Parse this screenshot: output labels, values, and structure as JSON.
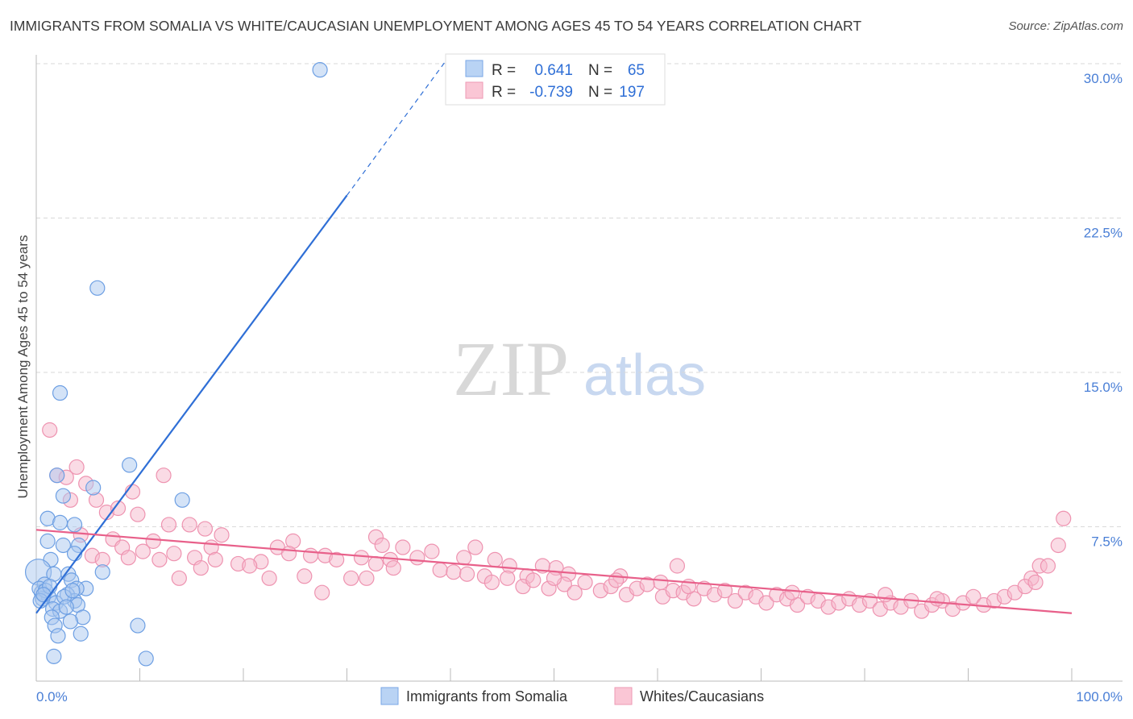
{
  "title": "IMMIGRANTS FROM SOMALIA VS WHITE/CAUCASIAN UNEMPLOYMENT AMONG AGES 45 TO 54 YEARS CORRELATION CHART",
  "source": "Source: ZipAtlas.com",
  "watermark": "ZIPatlas",
  "colors": {
    "blue": "#2f6fd6",
    "blue_fill": "#a9c8f0",
    "pink": "#e8608a",
    "pink_fill": "#f6b8cb"
  },
  "chart_data": {
    "type": "scatter",
    "title": "IMMIGRANTS FROM SOMALIA VS WHITE/CAUCASIAN UNEMPLOYMENT AMONG AGES 45 TO 54 YEARS CORRELATION CHART",
    "xlabel": "",
    "ylabel": "Unemployment Among Ages 45 to 54 years",
    "xlim": [
      0,
      100
    ],
    "ylim": [
      0,
      30
    ],
    "x_tick_labels": [
      "0.0%",
      "100.0%"
    ],
    "y_ticks": [
      7.5,
      15.0,
      22.5,
      30.0
    ],
    "y_tick_labels": [
      "7.5%",
      "15.0%",
      "22.5%",
      "30.0%"
    ],
    "grid": true,
    "legend_placement": "top-center",
    "legend": [
      {
        "name": "Immigrants from Somalia",
        "r_label": "R =",
        "r": "0.641",
        "n_label": "N =",
        "n": "65"
      },
      {
        "name": "Whites/Caucasians",
        "r_label": "R =",
        "r": "-0.739",
        "n_label": "N =",
        "n": "197"
      }
    ],
    "series": [
      {
        "name": "Immigrants from Somalia",
        "trend": {
          "x": [
            0,
            30
          ],
          "y": [
            3.3,
            23.6
          ],
          "dashed_to": [
            39.5,
            30.1
          ]
        },
        "points": [
          [
            27.4,
            29.7
          ],
          [
            5.9,
            19.1
          ],
          [
            2.3,
            14.0
          ],
          [
            2.0,
            10.0
          ],
          [
            9.0,
            10.5
          ],
          [
            5.5,
            9.4
          ],
          [
            14.1,
            8.8
          ],
          [
            2.6,
            9.0
          ],
          [
            1.1,
            7.9
          ],
          [
            2.3,
            7.7
          ],
          [
            3.7,
            7.6
          ],
          [
            1.1,
            6.8
          ],
          [
            2.6,
            6.6
          ],
          [
            4.1,
            6.6
          ],
          [
            3.7,
            6.2
          ],
          [
            1.4,
            5.9
          ],
          [
            6.4,
            5.3
          ],
          [
            0.2,
            5.3
          ],
          [
            3.1,
            5.2
          ],
          [
            1.7,
            5.2
          ],
          [
            3.4,
            4.9
          ],
          [
            4.8,
            4.5
          ],
          [
            0.8,
            4.7
          ],
          [
            3.9,
            4.5
          ],
          [
            0.5,
            4.3
          ],
          [
            1.2,
            4.1
          ],
          [
            3.0,
            4.2
          ],
          [
            3.7,
            3.9
          ],
          [
            1.9,
            3.8
          ],
          [
            4.0,
            3.7
          ],
          [
            1.6,
            3.5
          ],
          [
            2.3,
            3.4
          ],
          [
            1.5,
            3.1
          ],
          [
            4.5,
            3.1
          ],
          [
            3.3,
            2.9
          ],
          [
            1.8,
            2.7
          ],
          [
            9.8,
            2.7
          ],
          [
            4.3,
            2.3
          ],
          [
            2.1,
            2.2
          ],
          [
            1.7,
            1.2
          ],
          [
            10.6,
            1.1
          ],
          [
            0.3,
            4.5
          ],
          [
            0.6,
            4.0
          ],
          [
            0.9,
            4.4
          ],
          [
            1.3,
            4.6
          ],
          [
            0.4,
            3.9
          ],
          [
            2.7,
            4.1
          ],
          [
            3.5,
            4.4
          ],
          [
            2.9,
            3.6
          ],
          [
            0.7,
            4.2
          ]
        ]
      },
      {
        "name": "Whites/Caucasians",
        "trend": {
          "x": [
            0,
            100
          ],
          "y": [
            7.35,
            3.3
          ]
        },
        "points": [
          [
            1.3,
            12.2
          ],
          [
            3.9,
            10.4
          ],
          [
            2.0,
            10.0
          ],
          [
            2.9,
            9.9
          ],
          [
            12.3,
            10.0
          ],
          [
            4.8,
            9.6
          ],
          [
            9.3,
            9.2
          ],
          [
            3.3,
            8.8
          ],
          [
            5.8,
            8.8
          ],
          [
            6.8,
            8.2
          ],
          [
            9.8,
            8.1
          ],
          [
            7.9,
            8.4
          ],
          [
            99.2,
            7.9
          ],
          [
            12.8,
            7.6
          ],
          [
            14.8,
            7.6
          ],
          [
            16.3,
            7.4
          ],
          [
            17.9,
            7.1
          ],
          [
            32.8,
            7.0
          ],
          [
            4.3,
            7.1
          ],
          [
            7.4,
            6.9
          ],
          [
            11.3,
            6.8
          ],
          [
            24.8,
            6.8
          ],
          [
            33.4,
            6.6
          ],
          [
            98.7,
            6.6
          ],
          [
            8.3,
            6.5
          ],
          [
            16.9,
            6.5
          ],
          [
            23.3,
            6.5
          ],
          [
            35.4,
            6.5
          ],
          [
            42.4,
            6.5
          ],
          [
            38.2,
            6.3
          ],
          [
            10.3,
            6.3
          ],
          [
            13.3,
            6.2
          ],
          [
            24.4,
            6.2
          ],
          [
            26.5,
            6.1
          ],
          [
            27.9,
            6.1
          ],
          [
            5.4,
            6.1
          ],
          [
            8.9,
            6.0
          ],
          [
            15.3,
            6.0
          ],
          [
            31.4,
            6.0
          ],
          [
            36.8,
            6.0
          ],
          [
            41.3,
            6.0
          ],
          [
            29.0,
            5.9
          ],
          [
            34.2,
            5.9
          ],
          [
            6.4,
            5.9
          ],
          [
            11.9,
            5.9
          ],
          [
            17.3,
            5.9
          ],
          [
            44.3,
            5.9
          ],
          [
            21.7,
            5.8
          ],
          [
            19.5,
            5.7
          ],
          [
            61.9,
            5.6
          ],
          [
            20.6,
            5.6
          ],
          [
            32.8,
            5.7
          ],
          [
            34.5,
            5.5
          ],
          [
            45.7,
            5.6
          ],
          [
            50.2,
            5.5
          ],
          [
            48.9,
            5.6
          ],
          [
            96.9,
            5.6
          ],
          [
            97.7,
            5.6
          ],
          [
            15.9,
            5.5
          ],
          [
            39.0,
            5.4
          ],
          [
            40.3,
            5.3
          ],
          [
            43.3,
            5.1
          ],
          [
            47.4,
            5.1
          ],
          [
            13.8,
            5.0
          ],
          [
            22.5,
            5.0
          ],
          [
            25.9,
            5.1
          ],
          [
            30.4,
            5.0
          ],
          [
            31.9,
            5.0
          ],
          [
            96.1,
            5.0
          ],
          [
            51.4,
            5.2
          ],
          [
            56.4,
            5.1
          ],
          [
            60.3,
            4.8
          ],
          [
            27.6,
            4.3
          ],
          [
            41.6,
            5.2
          ],
          [
            44,
            4.8
          ],
          [
            45.5,
            5.0
          ],
          [
            47,
            4.6
          ],
          [
            48,
            4.9
          ],
          [
            49.5,
            4.5
          ],
          [
            51,
            4.7
          ],
          [
            52,
            4.3
          ],
          [
            53,
            4.8
          ],
          [
            54.5,
            4.4
          ],
          [
            55.5,
            4.6
          ],
          [
            57,
            4.2
          ],
          [
            58,
            4.5
          ],
          [
            59,
            4.7
          ],
          [
            60.5,
            4.1
          ],
          [
            61.5,
            4.4
          ],
          [
            62.5,
            4.3
          ],
          [
            63.5,
            4.0
          ],
          [
            64.5,
            4.5
          ],
          [
            65.5,
            4.2
          ],
          [
            66.5,
            4.4
          ],
          [
            67.5,
            3.9
          ],
          [
            68.5,
            4.3
          ],
          [
            69.5,
            4.1
          ],
          [
            70.5,
            3.8
          ],
          [
            71.5,
            4.2
          ],
          [
            72.5,
            4.0
          ],
          [
            73.5,
            3.7
          ],
          [
            74.5,
            4.1
          ],
          [
            75.5,
            3.9
          ],
          [
            76.5,
            3.6
          ],
          [
            77.5,
            3.8
          ],
          [
            78.5,
            4.0
          ],
          [
            79.5,
            3.7
          ],
          [
            80.5,
            3.9
          ],
          [
            81.5,
            3.5
          ],
          [
            82.5,
            3.8
          ],
          [
            83.5,
            3.6
          ],
          [
            84.5,
            3.9
          ],
          [
            85.5,
            3.4
          ],
          [
            86.5,
            3.7
          ],
          [
            87.5,
            3.9
          ],
          [
            88.5,
            3.5
          ],
          [
            89.5,
            3.8
          ],
          [
            90.5,
            4.1
          ],
          [
            91.5,
            3.7
          ],
          [
            92.5,
            3.9
          ],
          [
            93.5,
            4.1
          ],
          [
            94.5,
            4.3
          ],
          [
            95.5,
            4.6
          ],
          [
            96.5,
            4.8
          ],
          [
            82,
            4.2
          ],
          [
            87,
            4.0
          ],
          [
            73,
            4.3
          ],
          [
            63,
            4.6
          ],
          [
            56,
            4.9
          ],
          [
            50,
            5.0
          ]
        ]
      }
    ]
  }
}
